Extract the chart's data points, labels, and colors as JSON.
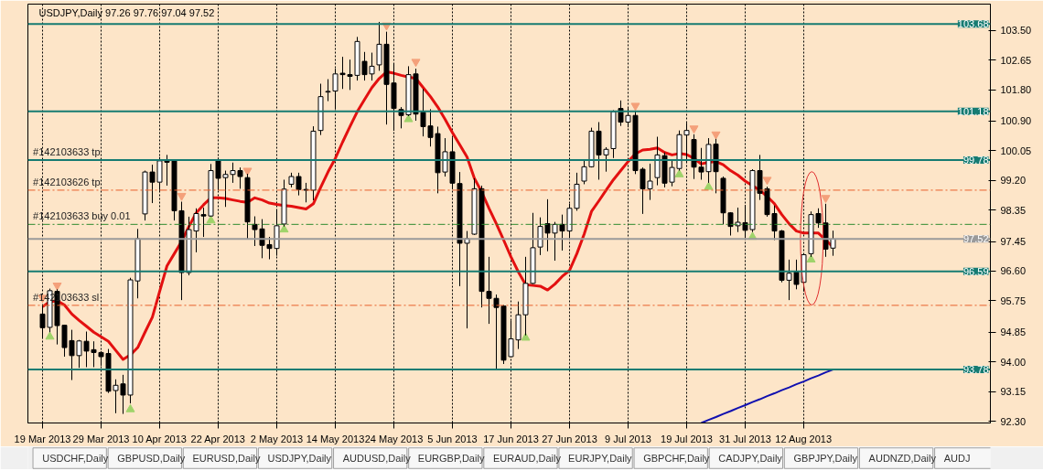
{
  "chart_data": {
    "type": "candlestick",
    "title": "USDJPY,Daily 97.26 97.76 97.04 97.52",
    "categories": [
      "19 Mar 2013",
      null,
      null,
      null,
      null,
      null,
      null,
      null,
      "29 Mar 2013",
      null,
      null,
      null,
      null,
      null,
      null,
      null,
      "10 Apr 2013",
      null,
      null,
      null,
      null,
      null,
      null,
      null,
      "22 Apr 2013",
      null,
      null,
      null,
      null,
      null,
      null,
      null,
      "2 May 2013",
      null,
      null,
      null,
      null,
      null,
      null,
      null,
      "14 May 2013",
      null,
      null,
      null,
      null,
      null,
      null,
      null,
      "24 May 2013",
      null,
      null,
      null,
      null,
      null,
      null,
      null,
      "5 Jun 2013",
      null,
      null,
      null,
      null,
      null,
      null,
      null,
      "17 Jun 2013",
      null,
      null,
      null,
      null,
      null,
      null,
      null,
      "27 Jun 2013",
      null,
      null,
      null,
      null,
      null,
      null,
      null,
      "9 Jul 2013",
      null,
      null,
      null,
      null,
      null,
      null,
      null,
      "19 Jul 2013",
      null,
      null,
      null,
      null,
      null,
      null,
      null,
      "31 Jul 2013",
      null,
      null,
      null,
      null,
      null,
      null,
      null,
      "12 Aug 2013",
      null,
      null,
      null,
      null
    ],
    "ohlc": [
      [
        95.37,
        95.63,
        94.67,
        94.98
      ],
      [
        94.99,
        96.1,
        94.85,
        96.04
      ],
      [
        96.02,
        96.08,
        94.5,
        95.04
      ],
      [
        95.05,
        95.06,
        94.15,
        94.41
      ],
      [
        94.61,
        94.92,
        93.48,
        94.18
      ],
      [
        94.18,
        94.63,
        93.83,
        94.6
      ],
      [
        94.59,
        94.87,
        93.85,
        94.31
      ],
      [
        94.35,
        94.59,
        93.85,
        94.27
      ],
      [
        94.27,
        94.31,
        93.89,
        94.15
      ],
      [
        94.24,
        94.37,
        93.11,
        93.16
      ],
      [
        93.18,
        93.5,
        92.53,
        93.33
      ],
      [
        93.37,
        93.63,
        92.51,
        93.05
      ],
      [
        93.05,
        96.41,
        92.81,
        96.35
      ],
      [
        96.32,
        97.81,
        95.82,
        97.53
      ],
      [
        98.24,
        99.48,
        98.05,
        99.44
      ],
      [
        99.44,
        99.65,
        98.55,
        99.15
      ],
      [
        99.15,
        99.87,
        98.89,
        99.76
      ],
      [
        99.76,
        99.93,
        99.05,
        99.72
      ],
      [
        99.76,
        99.78,
        98.05,
        98.33
      ],
      [
        98.33,
        98.59,
        95.77,
        96.56
      ],
      [
        96.56,
        98.16,
        96.48,
        97.79
      ],
      [
        97.75,
        98.4,
        97.14,
        98.25
      ],
      [
        98.22,
        98.42,
        97.58,
        98.18
      ],
      [
        98.18,
        99.67,
        98.16,
        99.48
      ],
      [
        99.78,
        99.85,
        98.92,
        99.26
      ],
      [
        99.28,
        99.48,
        98.44,
        99.37
      ],
      [
        99.37,
        99.71,
        99.13,
        99.48
      ],
      [
        99.48,
        99.57,
        98.96,
        99.31
      ],
      [
        99.28,
        99.39,
        97.53,
        98.01
      ],
      [
        97.94,
        98.17,
        97.32,
        97.79
      ],
      [
        97.81,
        98.09,
        96.97,
        97.34
      ],
      [
        97.36,
        97.58,
        96.94,
        97.25
      ],
      [
        97.25,
        98.37,
        97.04,
        97.9
      ],
      [
        97.95,
        99.22,
        97.88,
        98.95
      ],
      [
        99.09,
        99.42,
        99.0,
        99.31
      ],
      [
        99.31,
        99.42,
        98.77,
        98.94
      ],
      [
        98.94,
        99.13,
        98.57,
        98.92
      ],
      [
        98.92,
        100.75,
        98.63,
        100.61
      ],
      [
        100.63,
        101.97,
        100.5,
        101.6
      ],
      [
        101.73,
        102.1,
        101.47,
        101.75
      ],
      [
        101.76,
        102.4,
        101.23,
        102.25
      ],
      [
        102.27,
        102.74,
        101.82,
        102.23
      ],
      [
        102.23,
        102.66,
        101.79,
        102.18
      ],
      [
        102.21,
        103.31,
        102.06,
        103.18
      ],
      [
        102.61,
        102.88,
        102.06,
        102.23
      ],
      [
        102.25,
        102.86,
        102.06,
        102.47
      ],
      [
        102.51,
        103.74,
        102.34,
        103.1
      ],
      [
        103.1,
        103.46,
        100.8,
        101.95
      ],
      [
        101.99,
        102.55,
        100.62,
        101.26
      ],
      [
        101.23,
        101.3,
        100.69,
        101.06
      ],
      [
        101.08,
        102.47,
        101.04,
        102.23
      ],
      [
        102.25,
        102.4,
        100.91,
        101.1
      ],
      [
        101.15,
        101.82,
        100.46,
        100.74
      ],
      [
        100.76,
        101.24,
        100.17,
        100.43
      ],
      [
        100.54,
        100.74,
        98.83,
        99.42
      ],
      [
        99.44,
        100.41,
        99.31,
        100.02
      ],
      [
        100.02,
        100.43,
        98.94,
        99.12
      ],
      [
        99.11,
        99.44,
        96.17,
        97.4
      ],
      [
        97.4,
        97.75,
        94.96,
        97.53
      ],
      [
        97.66,
        99.26,
        97.64,
        98.96
      ],
      [
        98.96,
        99.05,
        95.56,
        96.02
      ],
      [
        96.02,
        97.01,
        95.09,
        95.82
      ],
      [
        95.82,
        95.93,
        93.79,
        95.56
      ],
      [
        95.6,
        95.63,
        93.94,
        94.05
      ],
      [
        94.15,
        95.19,
        94.13,
        94.66
      ],
      [
        94.63,
        95.73,
        94.37,
        95.35
      ],
      [
        95.35,
        97.01,
        94.76,
        96.25
      ],
      [
        96.25,
        98.27,
        96.23,
        97.27
      ],
      [
        97.29,
        98.14,
        97.06,
        97.88
      ],
      [
        97.96,
        98.66,
        97.17,
        97.69
      ],
      [
        97.69,
        98.01,
        96.9,
        97.94
      ],
      [
        97.94,
        98.22,
        97.19,
        97.75
      ],
      [
        97.75,
        98.53,
        97.53,
        98.4
      ],
      [
        98.4,
        99.42,
        98.33,
        99.09
      ],
      [
        99.18,
        99.78,
        99.09,
        99.59
      ],
      [
        99.59,
        100.71,
        99.57,
        100.61
      ],
      [
        100.61,
        100.87,
        99.22,
        99.93
      ],
      [
        99.93,
        100.15,
        99.45,
        100.09
      ],
      [
        100.11,
        101.21,
        99.84,
        101.17
      ],
      [
        101.26,
        101.49,
        100.76,
        100.87
      ],
      [
        100.87,
        101.27,
        100.72,
        101.06
      ],
      [
        101.06,
        101.19,
        99.38,
        99.48
      ],
      [
        99.52,
        99.57,
        98.24,
        98.96
      ],
      [
        98.96,
        99.68,
        98.64,
        99.18
      ],
      [
        99.28,
        100.45,
        99.06,
        99.93
      ],
      [
        99.91,
        100.0,
        99.0,
        99.12
      ],
      [
        99.15,
        99.8,
        99.03,
        99.57
      ],
      [
        99.54,
        100.63,
        99.48,
        100.51
      ],
      [
        100.5,
        100.85,
        99.7,
        100.63
      ],
      [
        100.37,
        100.52,
        99.24,
        99.58
      ],
      [
        99.58,
        100.13,
        99.22,
        99.44
      ],
      [
        99.45,
        100.41,
        99.13,
        100.23
      ],
      [
        100.24,
        100.39,
        98.83,
        99.45
      ],
      [
        99.26,
        99.31,
        97.94,
        98.27
      ],
      [
        98.27,
        98.29,
        97.62,
        97.88
      ],
      [
        97.9,
        98.42,
        97.72,
        98.0
      ],
      [
        97.99,
        98.5,
        97.55,
        97.77
      ],
      [
        97.79,
        99.52,
        97.72,
        99.48
      ],
      [
        99.48,
        99.93,
        98.64,
        98.83
      ],
      [
        98.96,
        99.02,
        98.16,
        98.22
      ],
      [
        98.25,
        98.48,
        97.49,
        97.75
      ],
      [
        97.75,
        97.78,
        96.28,
        96.34
      ],
      [
        96.34,
        96.93,
        95.77,
        96.54
      ],
      [
        96.58,
        96.93,
        96.08,
        96.22
      ],
      [
        96.28,
        97.1,
        96.02,
        97.07
      ],
      [
        97.1,
        98.31,
        97.01,
        98.22
      ],
      [
        98.25,
        98.4,
        97.84,
        97.98
      ],
      [
        97.98,
        98.53,
        97.01,
        97.23
      ],
      [
        97.26,
        97.76,
        97.04,
        97.52
      ]
    ],
    "series": [
      {
        "type": "line",
        "color": "#e31010",
        "values": [
          95.58,
          95.73,
          95.75,
          95.63,
          95.37,
          95.19,
          95.02,
          94.85,
          94.72,
          94.59,
          94.33,
          94.07,
          94.2,
          94.41,
          94.85,
          95.28,
          96.02,
          96.75,
          97.1,
          97.45,
          97.88,
          98.27,
          98.5,
          98.7,
          98.7,
          98.68,
          98.64,
          98.6,
          98.57,
          98.7,
          98.64,
          98.55,
          98.51,
          98.48,
          98.46,
          98.42,
          98.38,
          98.53,
          99.0,
          99.44,
          99.83,
          100.3,
          100.74,
          101.17,
          101.52,
          101.86,
          102.12,
          102.31,
          102.27,
          102.21,
          102.16,
          102.12,
          101.86,
          101.6,
          101.3,
          100.95,
          100.57,
          100.22,
          99.87,
          99.26,
          98.87,
          98.4,
          97.96,
          97.49,
          97.01,
          96.58,
          96.21,
          96.19,
          96.17,
          96.06,
          96.23,
          96.45,
          96.62,
          97.1,
          97.66,
          98.31,
          98.61,
          98.92,
          99.22,
          99.48,
          99.74,
          99.96,
          100.07,
          100.09,
          100.13,
          100.0,
          99.93,
          99.97,
          99.94,
          99.83,
          99.67,
          99.72,
          99.74,
          99.65,
          99.48,
          99.35,
          99.18,
          99.05,
          98.92,
          98.74,
          98.53,
          98.22,
          97.96,
          97.75,
          97.69,
          97.69,
          97.69,
          97.49,
          97.29
        ]
      },
      {
        "type": "line",
        "color": "#1010b0",
        "values": [
          null,
          null,
          null,
          null,
          null,
          null,
          null,
          null,
          null,
          null,
          null,
          null,
          null,
          null,
          null,
          null,
          null,
          null,
          null,
          null,
          null,
          null,
          null,
          null,
          null,
          null,
          null,
          null,
          null,
          null,
          null,
          null,
          null,
          null,
          null,
          null,
          null,
          null,
          null,
          null,
          null,
          null,
          null,
          null,
          null,
          null,
          null,
          null,
          null,
          null,
          null,
          null,
          null,
          null,
          null,
          null,
          null,
          null,
          null,
          null,
          null,
          null,
          null,
          null,
          null,
          null,
          null,
          null,
          null,
          null,
          null,
          null,
          null,
          null,
          null,
          null,
          null,
          null,
          null,
          null,
          null,
          null,
          null,
          null,
          null,
          null,
          null,
          null,
          null,
          null,
          92.25,
          92.34,
          92.42,
          92.51,
          92.59,
          92.68,
          92.76,
          92.85,
          92.93,
          93.02,
          93.1,
          93.19,
          93.27,
          93.36,
          93.44,
          93.53,
          93.61,
          93.7,
          93.78
        ]
      },
      {
        "type": "scatter",
        "marker": "triangle",
        "color": "#f4a07a",
        "values": [
          95.84,
          null,
          96.19,
          null,
          null,
          null,
          null,
          null,
          null,
          null,
          null,
          null,
          null,
          null,
          null,
          null,
          null,
          null,
          null,
          98.76,
          null,
          null,
          null,
          null,
          null,
          null,
          null,
          null,
          99.48,
          null,
          null,
          null,
          null,
          null,
          null,
          null,
          null,
          null,
          null,
          null,
          null,
          null,
          null,
          null,
          null,
          null,
          null,
          103.64,
          null,
          null,
          null,
          102.6,
          null,
          null,
          null,
          null,
          null,
          null,
          null,
          null,
          null,
          null,
          null,
          null,
          null,
          null,
          null,
          null,
          null,
          null,
          null,
          null,
          null,
          null,
          null,
          null,
          null,
          null,
          null,
          null,
          null,
          101.34,
          null,
          null,
          null,
          null,
          null,
          null,
          null,
          100.69,
          null,
          null,
          100.52,
          null,
          null,
          null,
          null,
          null,
          null,
          99.22,
          null,
          null,
          null,
          null,
          null,
          null,
          null,
          98.7,
          null
        ]
      },
      {
        "type": "scatter",
        "marker": "triangle",
        "color": "#9fd36a",
        "values": [
          null,
          94.72,
          null,
          null,
          null,
          null,
          null,
          null,
          null,
          null,
          null,
          null,
          92.64,
          null,
          null,
          null,
          null,
          null,
          null,
          null,
          null,
          null,
          null,
          98.05,
          null,
          null,
          null,
          null,
          null,
          null,
          null,
          null,
          null,
          97.79,
          null,
          null,
          null,
          null,
          null,
          null,
          null,
          null,
          null,
          null,
          null,
          null,
          null,
          null,
          null,
          null,
          100.95,
          null,
          null,
          null,
          null,
          null,
          null,
          null,
          null,
          null,
          null,
          null,
          null,
          null,
          null,
          null,
          94.69,
          null,
          null,
          null,
          null,
          null,
          null,
          null,
          null,
          null,
          null,
          null,
          null,
          null,
          null,
          null,
          null,
          null,
          null,
          null,
          null,
          99.37,
          null,
          null,
          null,
          99.01,
          null,
          null,
          null,
          null,
          null,
          97.58,
          null,
          null,
          null,
          null,
          null,
          null,
          null,
          96.93,
          null,
          null,
          null
        ]
      }
    ],
    "ylim": [
      92.25,
      104.25
    ],
    "yticks": [
      {
        "value": 92.3,
        "label": "92.30"
      },
      {
        "value": 93.15,
        "label": "93.15"
      },
      {
        "value": 94.0,
        "label": "94.00"
      },
      {
        "value": 94.85,
        "label": "94.85"
      },
      {
        "value": 95.75,
        "label": "95.75"
      },
      {
        "value": 96.6,
        "label": "96.60"
      },
      {
        "value": 97.45,
        "label": "97.45"
      },
      {
        "value": 98.35,
        "label": "98.35"
      },
      {
        "value": 99.2,
        "label": "99.20"
      },
      {
        "value": 100.05,
        "label": "100.05"
      },
      {
        "value": 100.9,
        "label": "100.90"
      },
      {
        "value": 101.8,
        "label": "101.80"
      },
      {
        "value": 102.65,
        "label": "102.65"
      },
      {
        "value": 103.5,
        "label": "103.50"
      }
    ],
    "ref_lines": [
      {
        "axis": "y",
        "value": 103.68,
        "label": "103.68",
        "color": "#167b72",
        "line_style": "solid"
      },
      {
        "axis": "y",
        "value": 101.18,
        "label": "101.18",
        "color": "#167b72",
        "line_style": "solid"
      },
      {
        "axis": "y",
        "value": 99.78,
        "label": "99.78",
        "color": "#167b72",
        "line_style": "solid"
      },
      {
        "axis": "y",
        "value": 96.59,
        "label": "96.59",
        "color": "#167b72",
        "line_style": "solid"
      },
      {
        "axis": "y",
        "value": 93.78,
        "label": "93.78",
        "color": "#167b72",
        "line_style": "solid"
      },
      {
        "axis": "y",
        "value": 97.52,
        "label": "97.52",
        "color": "#9a9a9a",
        "line_style": "solid"
      },
      {
        "axis": "y",
        "value": 98.92,
        "label": "#142103626 tp",
        "color": "#e8602c",
        "line_style": "dashed"
      },
      {
        "axis": "y",
        "value": 97.94,
        "label": "#142103633 buy 0.01",
        "color": "#2e8b2e",
        "line_style": "dashed"
      },
      {
        "axis": "y",
        "value": 95.62,
        "label": "#142103633 sl",
        "color": "#e8602c",
        "line_style": "dashed"
      }
    ],
    "annotations": [
      {
        "text": "#142103633 tp",
        "y": 99.78
      },
      "USDCHF,Daily",
      "GBPUSD,Daily",
      "EURUSD,Daily",
      "USDJPY,Daily",
      "AUDUSD,Daily",
      "EURGBP,Daily",
      "EURAUD,Daily",
      "EURJPY,Daily",
      "GBPCHF,Daily",
      "CADJPY,Daily",
      "GBPJPY,Daily",
      "AUDNZD,Daily",
      "AUDJ"
    ],
    "grid": "x"
  }
}
